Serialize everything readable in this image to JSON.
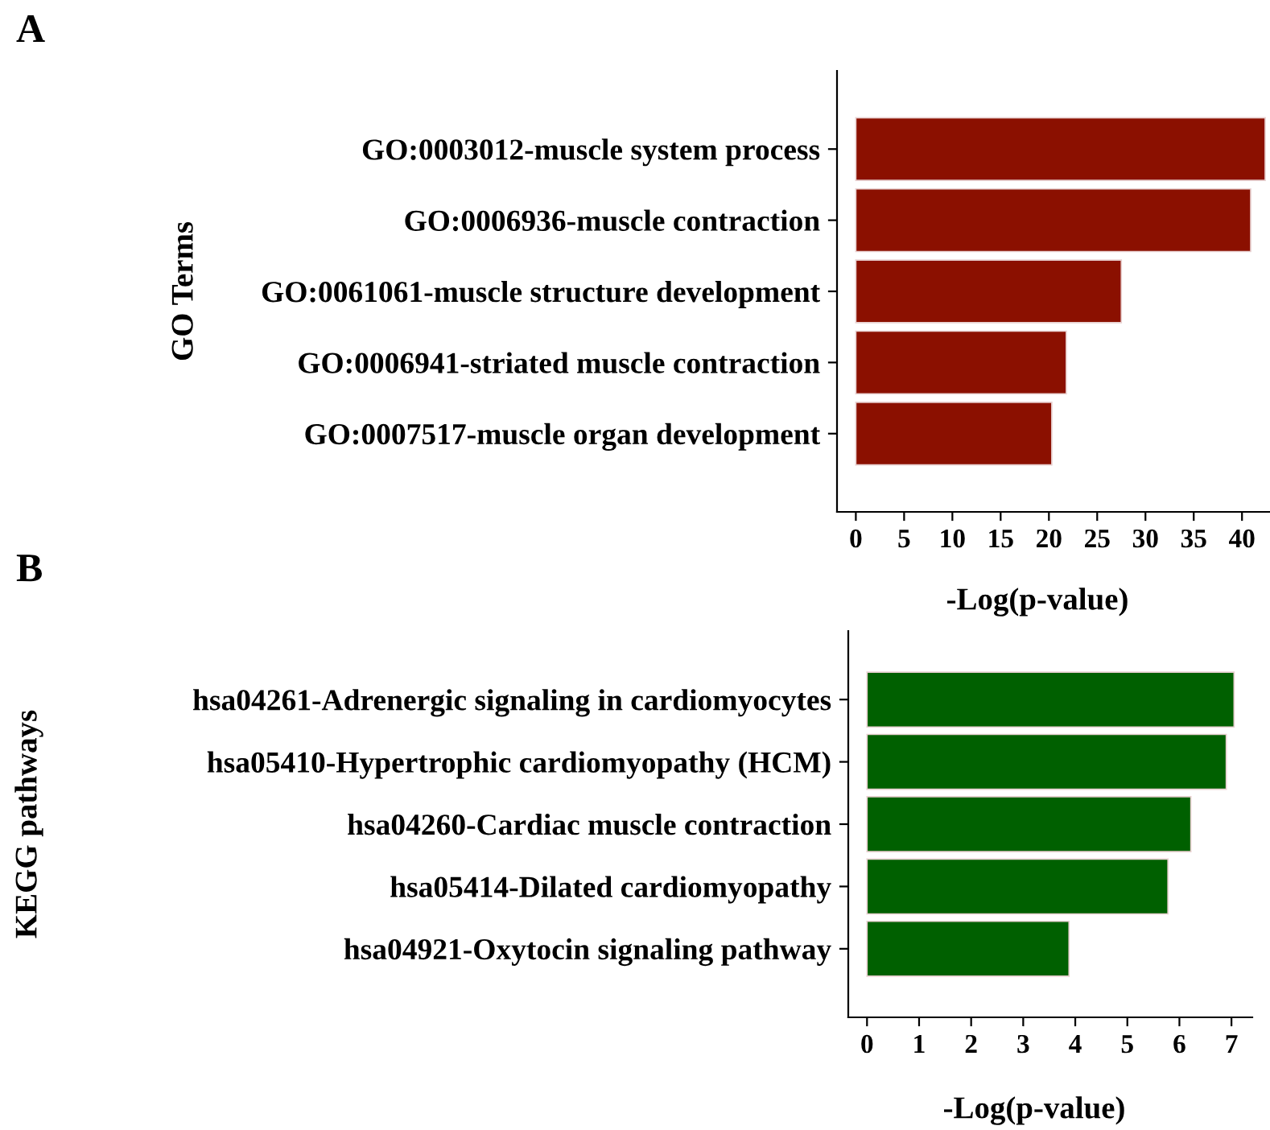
{
  "chart_data": [
    {
      "type": "bar",
      "title": "A",
      "orientation": "horizontal",
      "ylabel": "GO Terms",
      "xlabel": "-Log(p-value)",
      "categories": [
        "GO:0003012-muscle system process",
        "GO:0006936-muscle contraction",
        "GO:0061061-muscle structure development",
        "GO:0006941-striated muscle contraction",
        "GO:0007517-muscle organ development"
      ],
      "values": [
        42.4,
        40.9,
        27.5,
        21.8,
        20.3
      ],
      "color": "#8b1000",
      "xlim": [
        -1.95,
        42.9
      ],
      "xticks": [
        0,
        5,
        10,
        15,
        20,
        25,
        30,
        35,
        40
      ],
      "grid": false,
      "legend": false
    },
    {
      "type": "bar",
      "title": "B",
      "orientation": "horizontal",
      "ylabel": "KEGG pathways",
      "xlabel": "-Log(p-value)",
      "categories": [
        "hsa04261-Adrenergic signaling in cardiomyocytes",
        "hsa05410-Hypertrophic cardiomyopathy (HCM)",
        "hsa04260-Cardiac muscle contraction",
        "hsa05414-Dilated cardiomyopathy",
        "hsa04921-Oxytocin signaling pathway"
      ],
      "values": [
        7.05,
        6.9,
        6.22,
        5.78,
        3.88
      ],
      "color": "#006000",
      "xlim": [
        -0.36,
        7.4
      ],
      "xticks": [
        0,
        1,
        2,
        3,
        4,
        5,
        6,
        7
      ],
      "grid": false,
      "legend": false
    }
  ]
}
